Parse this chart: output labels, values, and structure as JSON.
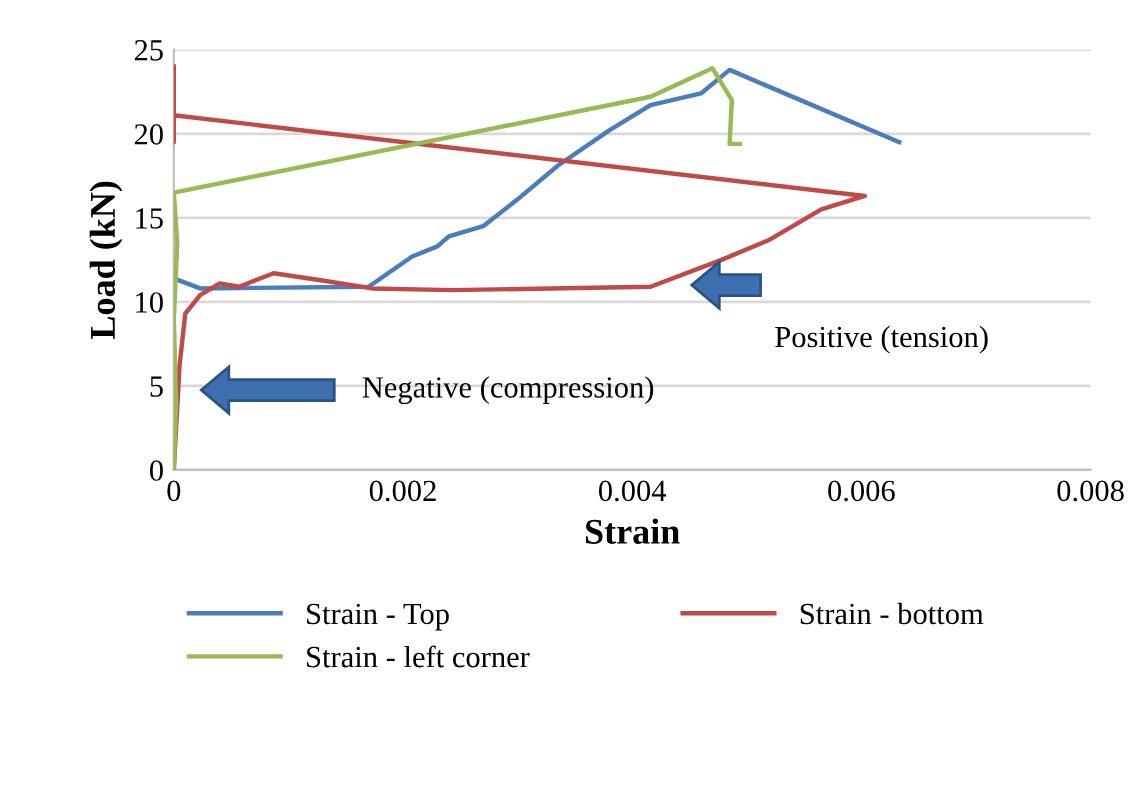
{
  "chart_data": {
    "type": "line",
    "xlabel": "Strain",
    "ylabel": "Load (kN)",
    "xlim": [
      0,
      0.008
    ],
    "xticks": [
      0,
      0.002,
      0.004,
      0.006,
      0.008
    ],
    "ylim": [
      0,
      25
    ],
    "yticks": [
      0,
      5,
      10,
      15,
      20,
      25
    ],
    "grid": "y",
    "legend": "bottom",
    "marker": "none",
    "line_style": "solid",
    "series": [
      {
        "name": "Strain - Top",
        "color": "#4a7ebb",
        "x": [
          0,
          0.00023,
          0.0017,
          0.00208,
          0.0023,
          0.0024,
          0.0027,
          0.003,
          0.00335,
          0.0038,
          0.00416,
          0.0046,
          0.00485,
          0.00633
        ],
        "values": [
          11.4,
          10.8,
          10.9,
          12.7,
          13.3,
          13.9,
          14.5,
          16.1,
          18.1,
          20.2,
          21.7,
          22.4,
          23.8,
          19.5
        ]
      },
      {
        "name": "Strain - bottom",
        "color": "#be4b48",
        "x": [
          0,
          5e-05,
          0.0001,
          0.00023,
          0.0004,
          0.00057,
          0.00087,
          0.00127,
          0.00173,
          0.00243,
          0.00416,
          0.00478,
          0.0052,
          0.00565,
          0.00603,
          0,
          0,
          0
        ],
        "values": [
          0,
          6.2,
          9.3,
          10.4,
          11.1,
          10.9,
          11.7,
          11.3,
          10.8,
          10.7,
          10.9,
          12.5,
          13.7,
          15.5,
          16.3,
          21.1,
          19.5,
          24.0
        ]
      },
      {
        "name": "Strain - left corner",
        "color": "#98b954",
        "x": [
          0,
          2e-05,
          0,
          3e-05,
          0,
          0.00416,
          0.0047,
          0.00487,
          0.00485,
          0.00494
        ],
        "values": [
          0,
          4,
          9,
          13.5,
          16.5,
          22.2,
          23.9,
          22,
          19.4,
          19.4
        ]
      }
    ],
    "annotations": [
      "Negative (compression)",
      "Positive (tension)"
    ]
  }
}
